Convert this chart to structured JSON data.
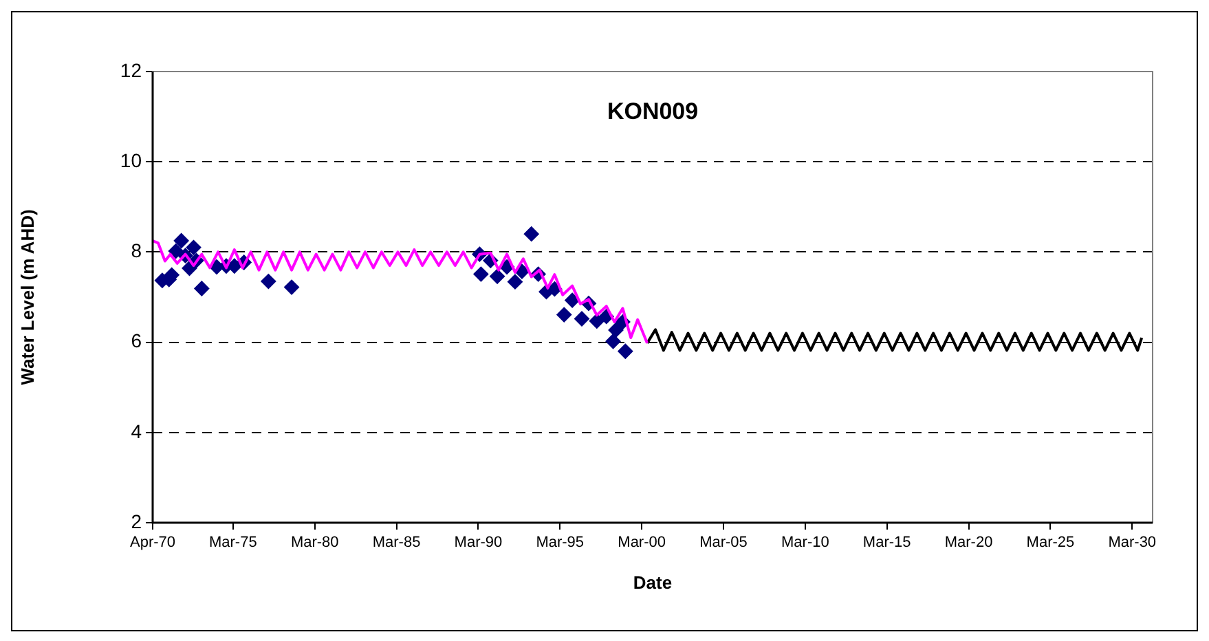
{
  "chart_data": {
    "type": "line",
    "title": "KON009",
    "xlabel": "Date",
    "ylabel": "Water Level (m AHD)",
    "xlim": [
      "1970-04",
      "2031-06"
    ],
    "ylim": [
      2,
      12
    ],
    "xticks": [
      {
        "value": "1970-04",
        "label": "Apr-70"
      },
      {
        "value": "1975-03",
        "label": "Mar-75"
      },
      {
        "value": "1980-03",
        "label": "Mar-80"
      },
      {
        "value": "1985-03",
        "label": "Mar-85"
      },
      {
        "value": "1990-03",
        "label": "Mar-90"
      },
      {
        "value": "1995-03",
        "label": "Mar-95"
      },
      {
        "value": "2000-03",
        "label": "Mar-00"
      },
      {
        "value": "2005-03",
        "label": "Mar-05"
      },
      {
        "value": "2010-03",
        "label": "Mar-10"
      },
      {
        "value": "2015-03",
        "label": "Mar-15"
      },
      {
        "value": "2020-03",
        "label": "Mar-20"
      },
      {
        "value": "2025-03",
        "label": "Mar-25"
      },
      {
        "value": "2030-03",
        "label": "Mar-30"
      }
    ],
    "yticks": [
      2,
      4,
      6,
      8,
      10,
      12
    ],
    "grid": "y",
    "series": [
      {
        "type": "line",
        "color": "#ff00ff",
        "marker": "none",
        "x": [
          "1970-04",
          "1970-08",
          "1971-01",
          "1971-05",
          "1971-10",
          "1972-04",
          "1972-10",
          "1973-04",
          "1973-10",
          "1974-04",
          "1974-10",
          "1975-04",
          "1975-10",
          "1976-04",
          "1976-10",
          "1977-04",
          "1977-10",
          "1978-04",
          "1978-10",
          "1979-04",
          "1979-10",
          "1980-04",
          "1980-10",
          "1981-04",
          "1981-10",
          "1982-04",
          "1982-10",
          "1983-04",
          "1983-10",
          "1984-04",
          "1984-10",
          "1985-04",
          "1985-10",
          "1986-04",
          "1986-10",
          "1987-04",
          "1987-10",
          "1988-04",
          "1988-10",
          "1989-04",
          "1989-10",
          "1990-04",
          "1990-12",
          "1991-06",
          "1991-12",
          "1992-06",
          "1992-12",
          "1993-06",
          "1993-12",
          "1994-06",
          "1994-11",
          "1995-05",
          "1995-12",
          "1996-06",
          "1996-12",
          "1997-06",
          "1998-01",
          "1998-07",
          "1999-01",
          "1999-07",
          "1999-12",
          "2000-07"
        ],
        "values": [
          8.25,
          8.2,
          7.8,
          7.95,
          7.75,
          7.95,
          7.7,
          7.95,
          7.65,
          8.0,
          7.65,
          8.05,
          7.65,
          8.0,
          7.6,
          8.0,
          7.6,
          8.0,
          7.6,
          8.0,
          7.6,
          7.95,
          7.6,
          7.95,
          7.6,
          8.0,
          7.65,
          8.0,
          7.65,
          8.0,
          7.7,
          8.0,
          7.7,
          8.05,
          7.7,
          8.0,
          7.7,
          8.0,
          7.7,
          8.0,
          7.65,
          7.95,
          7.98,
          7.6,
          7.95,
          7.55,
          7.85,
          7.45,
          7.6,
          7.2,
          7.5,
          7.05,
          7.25,
          6.85,
          6.95,
          6.6,
          6.8,
          6.45,
          6.75,
          6.1,
          6.5,
          5.98
        ]
      },
      {
        "type": "line",
        "color": "#000000",
        "marker": "none",
        "x": [
          "2000-07",
          "2001-01",
          "2001-07",
          "2002-01",
          "2002-07",
          "2003-01",
          "2003-07",
          "2004-01",
          "2004-07",
          "2005-01",
          "2005-07",
          "2006-01",
          "2006-07",
          "2007-01",
          "2007-07",
          "2008-01",
          "2008-07",
          "2009-01",
          "2009-07",
          "2010-01",
          "2010-07",
          "2011-01",
          "2011-07",
          "2012-01",
          "2012-07",
          "2013-01",
          "2013-07",
          "2014-01",
          "2014-07",
          "2015-01",
          "2015-07",
          "2016-01",
          "2016-07",
          "2017-01",
          "2017-07",
          "2018-01",
          "2018-07",
          "2019-01",
          "2019-07",
          "2020-01",
          "2020-07",
          "2021-01",
          "2021-07",
          "2022-01",
          "2022-07",
          "2023-01",
          "2023-07",
          "2024-01",
          "2024-07",
          "2025-01",
          "2025-07",
          "2026-01",
          "2026-07",
          "2027-01",
          "2027-07",
          "2028-01",
          "2028-07",
          "2029-01",
          "2029-07",
          "2030-01",
          "2030-07",
          "2030-10"
        ],
        "values": [
          5.98,
          6.28,
          5.82,
          6.22,
          5.82,
          6.2,
          5.82,
          6.2,
          5.82,
          6.2,
          5.82,
          6.2,
          5.82,
          6.2,
          5.82,
          6.2,
          5.82,
          6.2,
          5.82,
          6.2,
          5.82,
          6.2,
          5.82,
          6.2,
          5.82,
          6.2,
          5.82,
          6.2,
          5.82,
          6.2,
          5.82,
          6.2,
          5.82,
          6.2,
          5.82,
          6.2,
          5.82,
          6.2,
          5.82,
          6.2,
          5.82,
          6.2,
          5.82,
          6.2,
          5.82,
          6.2,
          5.82,
          6.2,
          5.82,
          6.2,
          5.82,
          6.2,
          5.82,
          6.2,
          5.82,
          6.2,
          5.82,
          6.2,
          5.82,
          6.2,
          5.82,
          6.1
        ]
      },
      {
        "type": "scatter",
        "color": "#000080",
        "marker": "diamond",
        "x": [
          "1970-11",
          "1971-04",
          "1971-06",
          "1971-09",
          "1972-01",
          "1972-04",
          "1972-07",
          "1972-10",
          "1972-12",
          "1973-04",
          "1974-03",
          "1974-10",
          "1975-04",
          "1975-11",
          "1977-05",
          "1978-10",
          "1990-04",
          "1990-05",
          "1990-12",
          "1991-05",
          "1991-12",
          "1992-06",
          "1992-11",
          "1993-06",
          "1993-11",
          "1994-05",
          "1994-11",
          "1995-06",
          "1995-12",
          "1996-07",
          "1996-12",
          "1997-06",
          "1998-01",
          "1998-06",
          "1998-08",
          "1999-01",
          "1999-03"
        ],
        "values": [
          7.37,
          7.39,
          7.49,
          8.02,
          8.25,
          7.92,
          7.64,
          8.1,
          7.81,
          7.19,
          7.67,
          7.69,
          7.69,
          7.77,
          7.35,
          7.22,
          7.95,
          7.51,
          7.81,
          7.46,
          7.67,
          7.34,
          7.57,
          8.4,
          7.51,
          7.12,
          7.18,
          6.61,
          6.93,
          6.52,
          6.86,
          6.47,
          6.57,
          6.02,
          6.27,
          6.45,
          5.8
        ]
      }
    ]
  }
}
